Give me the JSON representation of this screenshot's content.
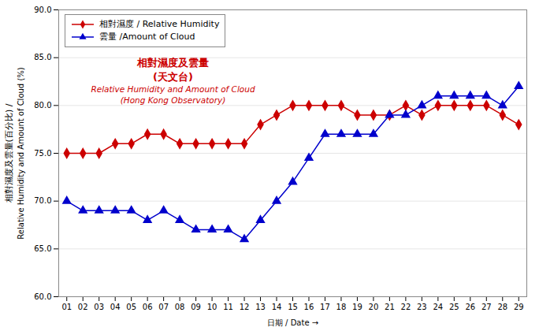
{
  "chart_data": {
    "type": "line",
    "xlabel": "日期 / Date",
    "ylabel": [
      "相對濕度及雲量(百分比) /",
      "Relative Humidity and Amount of Cloud (%)"
    ],
    "x": [
      1,
      2,
      3,
      4,
      5,
      6,
      7,
      8,
      9,
      10,
      11,
      12,
      13,
      14,
      15,
      16,
      17,
      18,
      19,
      20,
      21,
      22,
      23,
      24,
      25,
      26,
      27,
      28,
      29
    ],
    "series": [
      {
        "name": "相對濕度 / Relative Humidity",
        "color": "#cc0000",
        "marker": "diamond",
        "values": [
          75.0,
          75.0,
          75.0,
          76.0,
          76.0,
          77.0,
          77.0,
          76.0,
          76.0,
          76.0,
          76.0,
          76.0,
          78.0,
          79.0,
          80.0,
          80.0,
          80.0,
          80.0,
          79.0,
          79.0,
          79.0,
          80.0,
          79.0,
          80.0,
          80.0,
          80.0,
          80.0,
          79.0,
          78.0
        ]
      },
      {
        "name": "雲量 /Amount of Cloud",
        "color": "#0000cc",
        "marker": "triangle",
        "values": [
          70.0,
          69.0,
          69.0,
          69.0,
          69.0,
          68.0,
          69.0,
          68.0,
          67.0,
          67.0,
          67.0,
          66.0,
          68.0,
          70.0,
          72.0,
          74.5,
          77.0,
          77.0,
          77.0,
          77.0,
          79.0,
          79.0,
          80.0,
          81.0,
          81.0,
          81.0,
          81.0,
          80.0,
          82.0
        ]
      }
    ],
    "xlim": [
      0.5,
      29.5
    ],
    "xticks": [
      {
        "value": 1,
        "label": "01"
      },
      {
        "value": 2,
        "label": "02"
      },
      {
        "value": 3,
        "label": "03"
      },
      {
        "value": 4,
        "label": "04"
      },
      {
        "value": 5,
        "label": "05"
      },
      {
        "value": 6,
        "label": "06"
      },
      {
        "value": 7,
        "label": "07"
      },
      {
        "value": 8,
        "label": "08"
      },
      {
        "value": 9,
        "label": "09"
      },
      {
        "value": 10,
        "label": "10"
      },
      {
        "value": 11,
        "label": "11"
      },
      {
        "value": 12,
        "label": "12"
      },
      {
        "value": 13,
        "label": "13"
      },
      {
        "value": 14,
        "label": "14"
      },
      {
        "value": 15,
        "label": "15"
      },
      {
        "value": 16,
        "label": "16"
      },
      {
        "value": 17,
        "label": "17"
      },
      {
        "value": 18,
        "label": "18"
      },
      {
        "value": 19,
        "label": "19"
      },
      {
        "value": 20,
        "label": "20"
      },
      {
        "value": 21,
        "label": "21"
      },
      {
        "value": 22,
        "label": "22"
      },
      {
        "value": 23,
        "label": "23"
      },
      {
        "value": 24,
        "label": "24"
      },
      {
        "value": 25,
        "label": "25"
      },
      {
        "value": 26,
        "label": "26"
      },
      {
        "value": 27,
        "label": "27"
      },
      {
        "value": 28,
        "label": "28"
      },
      {
        "value": 29,
        "label": "29"
      }
    ],
    "ylim": [
      60.0,
      90.0
    ],
    "yticks": [
      {
        "value": 60.0,
        "label": "60.0"
      },
      {
        "value": 65.0,
        "label": "65.0"
      },
      {
        "value": 70.0,
        "label": "70.0"
      },
      {
        "value": 75.0,
        "label": "75.0"
      },
      {
        "value": 80.0,
        "label": "80.0"
      },
      {
        "value": 85.0,
        "label": "85.0"
      },
      {
        "value": 90.0,
        "label": "90.0"
      }
    ],
    "grid": true,
    "legend": "upper left",
    "annotations": [
      {
        "text": "相對濕度及雲量",
        "color": "#cc0000"
      },
      {
        "text": "(天文台)",
        "color": "#cc0000"
      },
      {
        "text": "Relative Humidity and Amount of Cloud",
        "color": "#cc0000"
      },
      {
        "text": "(Hong Kong Observatory)",
        "color": "#cc0000"
      }
    ]
  }
}
